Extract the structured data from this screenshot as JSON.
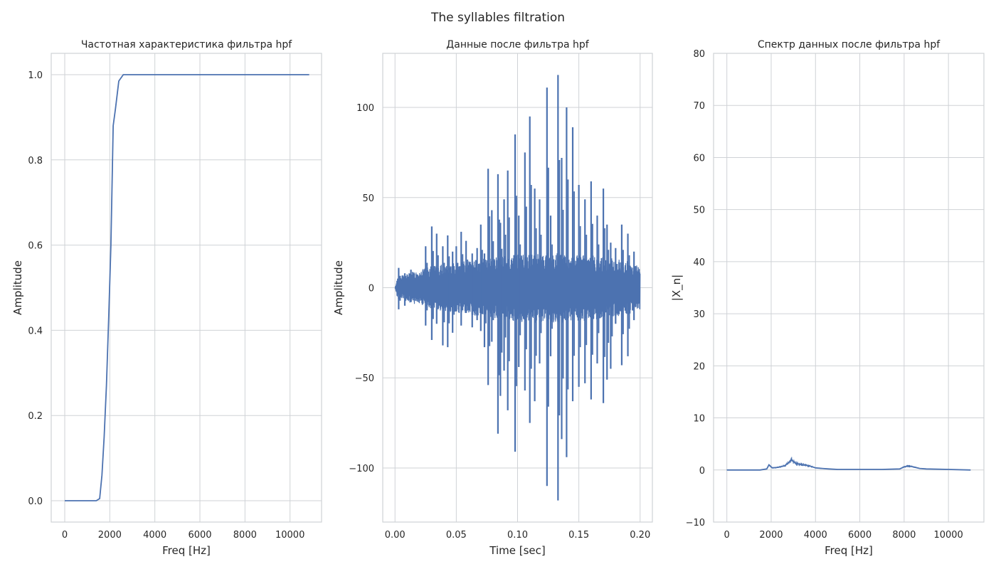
{
  "figure": {
    "suptitle": "The syllables filtration",
    "line_color": "#4c72b0",
    "grid_color": "#cfd2d6",
    "background": "#ffffff"
  },
  "chart_data": [
    {
      "type": "line",
      "title": "Частотная характеристика фильтра hpf",
      "xlabel": "Freq [Hz]",
      "ylabel": "Amplitude",
      "xlim": [
        -600,
        11400
      ],
      "ylim": [
        -0.05,
        1.05
      ],
      "xticks": [
        0,
        2000,
        4000,
        6000,
        8000,
        10000
      ],
      "xtick_labels": [
        "0",
        "2000",
        "4000",
        "6000",
        "8000",
        "10000"
      ],
      "yticks": [
        0.0,
        0.2,
        0.4,
        0.6,
        0.8,
        1.0
      ],
      "ytick_labels": [
        "0.0",
        "0.2",
        "0.4",
        "0.6",
        "0.8",
        "1.0"
      ],
      "grid": true,
      "series": [
        {
          "x": [
            0,
            800,
            1200,
            1400,
            1550,
            1650,
            1750,
            1850,
            1950,
            2050,
            2150,
            2250,
            2400,
            2600,
            3000,
            5000,
            8000,
            10850
          ],
          "y": [
            0.0,
            0.0,
            0.0,
            0.0,
            0.005,
            0.06,
            0.15,
            0.27,
            0.43,
            0.6,
            0.88,
            0.92,
            0.985,
            1.0,
            1.0,
            1.0,
            1.0,
            1.0
          ]
        }
      ]
    },
    {
      "type": "line",
      "title": "Данные после фильтра hpf",
      "xlabel": "Time [sec]",
      "ylabel": "Amplitude",
      "xlim": [
        -0.01,
        0.21
      ],
      "ylim": [
        -130,
        130
      ],
      "xticks": [
        0.0,
        0.05,
        0.1,
        0.15,
        0.2
      ],
      "xtick_labels": [
        "0.00",
        "0.05",
        "0.10",
        "0.15",
        "0.20"
      ],
      "yticks": [
        -100,
        -50,
        0,
        50,
        100
      ],
      "ytick_labels": [
        "−100",
        "−50",
        "0",
        "50",
        "100"
      ],
      "grid": true,
      "signal": {
        "duration": 0.2,
        "base_envelope": [
          [
            0.0,
            0
          ],
          [
            0.002,
            6
          ],
          [
            0.01,
            8
          ],
          [
            0.03,
            12
          ],
          [
            0.05,
            14
          ],
          [
            0.08,
            17
          ],
          [
            0.1,
            19
          ],
          [
            0.13,
            20
          ],
          [
            0.16,
            18
          ],
          [
            0.19,
            15
          ],
          [
            0.2,
            12
          ]
        ],
        "spikes": [
          [
            0.003,
            11,
            -12
          ],
          [
            0.008,
            8,
            -10
          ],
          [
            0.013,
            10,
            -8
          ],
          [
            0.025,
            23,
            -21
          ],
          [
            0.03,
            34,
            -29
          ],
          [
            0.034,
            30,
            -20
          ],
          [
            0.039,
            23,
            -32
          ],
          [
            0.043,
            29,
            -33
          ],
          [
            0.047,
            20,
            -25
          ],
          [
            0.05,
            23,
            -13
          ],
          [
            0.054,
            31,
            -21
          ],
          [
            0.058,
            26,
            -14
          ],
          [
            0.063,
            19,
            -22
          ],
          [
            0.067,
            22,
            -18
          ],
          [
            0.07,
            35,
            -24
          ],
          [
            0.073,
            19,
            -33
          ],
          [
            0.076,
            66,
            -54
          ],
          [
            0.079,
            43,
            -30
          ],
          [
            0.084,
            63,
            -81
          ],
          [
            0.086,
            36,
            -60
          ],
          [
            0.089,
            49,
            -46
          ],
          [
            0.092,
            65,
            -68
          ],
          [
            0.098,
            85,
            -91
          ],
          [
            0.101,
            40,
            -44
          ],
          [
            0.106,
            75,
            -57
          ],
          [
            0.11,
            95,
            -75
          ],
          [
            0.114,
            55,
            -63
          ],
          [
            0.118,
            49,
            -42
          ],
          [
            0.124,
            111,
            -110
          ],
          [
            0.127,
            40,
            -38
          ],
          [
            0.133,
            118,
            -118
          ],
          [
            0.136,
            72,
            -84
          ],
          [
            0.14,
            100,
            -94
          ],
          [
            0.145,
            89,
            -63
          ],
          [
            0.15,
            57,
            -55
          ],
          [
            0.155,
            49,
            -53
          ],
          [
            0.16,
            59,
            -62
          ],
          [
            0.165,
            40,
            -42
          ],
          [
            0.17,
            55,
            -64
          ],
          [
            0.173,
            35,
            -51
          ],
          [
            0.176,
            25,
            -45
          ],
          [
            0.18,
            22,
            -20
          ],
          [
            0.185,
            35,
            -43
          ],
          [
            0.19,
            30,
            -38
          ],
          [
            0.195,
            20,
            -18
          ]
        ]
      }
    },
    {
      "type": "line",
      "title": "Спектр данных после фильтра hpf",
      "xlabel": "Freq [Hz]",
      "ylabel": "|X_n|",
      "xlim": [
        -600,
        11600
      ],
      "ylim": [
        -10,
        80
      ],
      "xticks": [
        0,
        2000,
        4000,
        6000,
        8000,
        10000
      ],
      "xtick_labels": [
        "0",
        "2000",
        "4000",
        "6000",
        "8000",
        "10000"
      ],
      "yticks": [
        -10,
        0,
        10,
        20,
        30,
        40,
        50,
        60,
        70,
        80
      ],
      "ytick_labels": [
        "−10",
        "0",
        "10",
        "20",
        "30",
        "40",
        "50",
        "60",
        "70",
        "80"
      ],
      "grid": true,
      "series": [
        {
          "x": [
            0,
            1500,
            1800,
            1900,
            1950,
            2050,
            2300,
            2600,
            2800,
            2900,
            3000,
            3100,
            3300,
            3600,
            3800,
            4000,
            4300,
            4600,
            5000,
            6000,
            7000,
            7800,
            8000,
            8200,
            8400,
            8700,
            9000,
            10000,
            11000
          ],
          "y": [
            0.0,
            0.0,
            0.2,
            1.0,
            0.8,
            0.4,
            0.5,
            0.8,
            1.4,
            2.0,
            1.6,
            1.3,
            1.1,
            0.9,
            0.7,
            0.4,
            0.3,
            0.2,
            0.1,
            0.1,
            0.1,
            0.2,
            0.6,
            0.8,
            0.6,
            0.3,
            0.2,
            0.1,
            0.0
          ]
        }
      ]
    }
  ]
}
